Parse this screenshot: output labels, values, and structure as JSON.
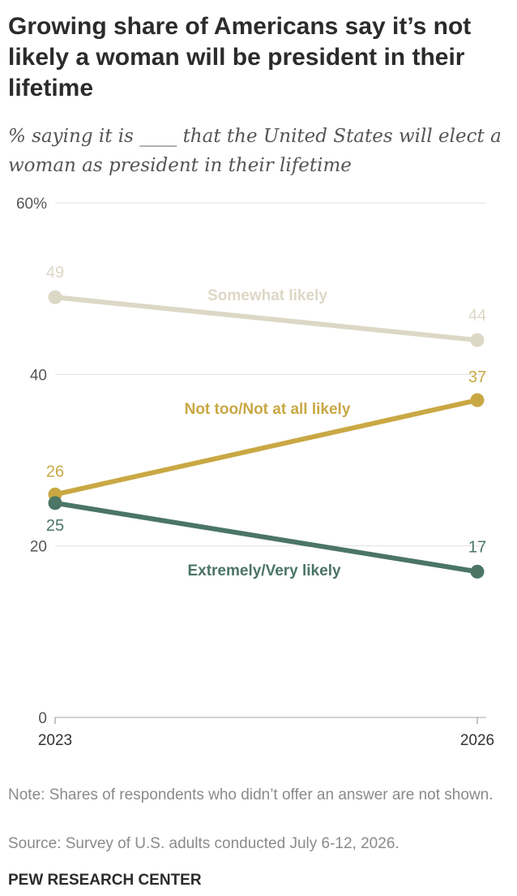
{
  "header": {
    "title": "Growing share of Americans say it’s not likely a woman will be president in their lifetime",
    "subtitle": "% saying it is ____ that the United States will elect a woman as president in their lifetime"
  },
  "chart_data": {
    "type": "line",
    "x": [
      "2023",
      "2026"
    ],
    "y_ticks": [
      "60%",
      "40",
      "20",
      "0"
    ],
    "ylim": [
      0,
      60
    ],
    "grid": true,
    "series": [
      {
        "name": "Somewhat likely",
        "values": [
          49,
          44
        ],
        "color": "#dcd8c6"
      },
      {
        "name": "Not too/Not at all likely",
        "values": [
          26,
          37
        ],
        "color": "#c9a844"
      },
      {
        "name": "Extremely/Very likely",
        "values": [
          25,
          17
        ],
        "color": "#4b7565"
      }
    ]
  },
  "footer": {
    "note": "Note: Shares of respondents who didn’t offer an answer are not shown.",
    "source": "Source: Survey of U.S. adults conducted July 6-12, 2026.",
    "brand": "PEW RESEARCH CENTER"
  }
}
